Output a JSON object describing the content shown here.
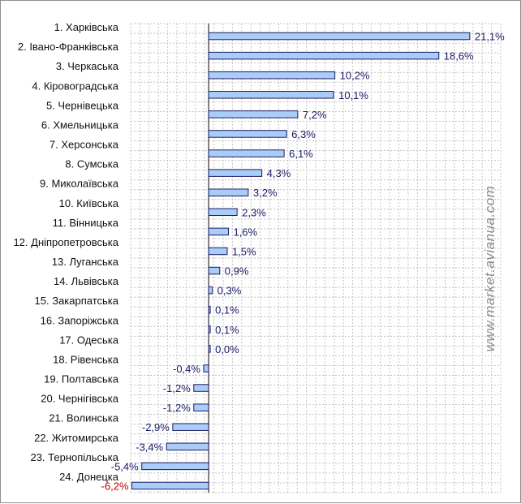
{
  "chart_data": {
    "type": "bar",
    "orientation": "horizontal",
    "categories": [
      "1. Харківська",
      "2. Івано-Франківська",
      "3. Черкаська",
      "4. Кіровоградська",
      "5. Чернівецька",
      "6. Хмельницька",
      "7. Херсонська",
      "8. Сумська",
      "9. Миколаївська",
      "10. Київська",
      "11. Вінницька",
      "12. Дніпропетровська",
      "13. Луганська",
      "14. Львівська",
      "15. Закарпатська",
      "16. Запоріжська",
      "17. Одеська",
      "18. Рівенська",
      "19. Полтавська",
      "20. Чернігівська",
      "21. Волинська",
      "22. Житомирська",
      "23. Тернопільська",
      "24. Донецка"
    ],
    "values": [
      21.1,
      18.6,
      10.2,
      10.1,
      7.2,
      6.3,
      6.1,
      4.3,
      3.2,
      2.3,
      1.6,
      1.5,
      0.9,
      0.3,
      0.1,
      0.1,
      0.0,
      -0.4,
      -1.2,
      -1.2,
      -2.9,
      -3.4,
      -5.4,
      -6.2
    ],
    "value_labels": [
      "21,1%",
      "18,6%",
      "10,2%",
      "10,1%",
      "7,2%",
      "6,3%",
      "6,1%",
      "4,3%",
      "3,2%",
      "2,3%",
      "1,6%",
      "1,5%",
      "0,9%",
      "0,3%",
      "0,1%",
      "0,1%",
      "0,0%",
      "-0,4%",
      "-1,2%",
      "-1,2%",
      "-2,9%",
      "-3,4%",
      "-5,4%",
      "-6,2%"
    ],
    "highlight_label_index": 23,
    "xlim": [
      -6.3,
      23.6
    ],
    "grid": true,
    "legend": "none",
    "title": "",
    "xlabel": "",
    "ylabel": ""
  },
  "watermark": "www.market.avianua.com",
  "colors": {
    "bar_fill": "#a9cdf7",
    "bar_stroke": "#1b1b66",
    "value_text": "#1a1a66",
    "negative_highlight_text": "#cc0000",
    "grid": "#c4c4c4",
    "axis": "#000000"
  }
}
